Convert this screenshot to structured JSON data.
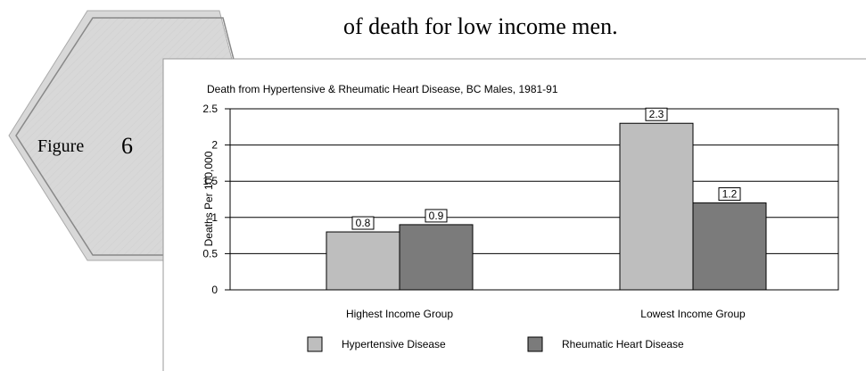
{
  "text": "of death for low income men.",
  "figure": {
    "label": "Figure",
    "number": "6"
  },
  "chart_data": {
    "type": "bar",
    "title": "Death from Hypertensive & Rheumatic Heart Disease, BC Males, 1981-91",
    "y_label": "Deaths Per 100,000",
    "categories": [
      "Highest Income Group",
      "Lowest Income Group"
    ],
    "series": [
      {
        "name": "Hypertensive Disease",
        "color": "#bebebe",
        "values": [
          0.8,
          2.3
        ]
      },
      {
        "name": "Rheumatic Heart Disease",
        "color": "#7b7b7b",
        "values": [
          0.9,
          1.2
        ]
      }
    ],
    "ylim": [
      0,
      2.5
    ],
    "yticks": [
      0,
      0.5,
      1,
      1.5,
      2,
      2.5
    ],
    "grid": true
  }
}
